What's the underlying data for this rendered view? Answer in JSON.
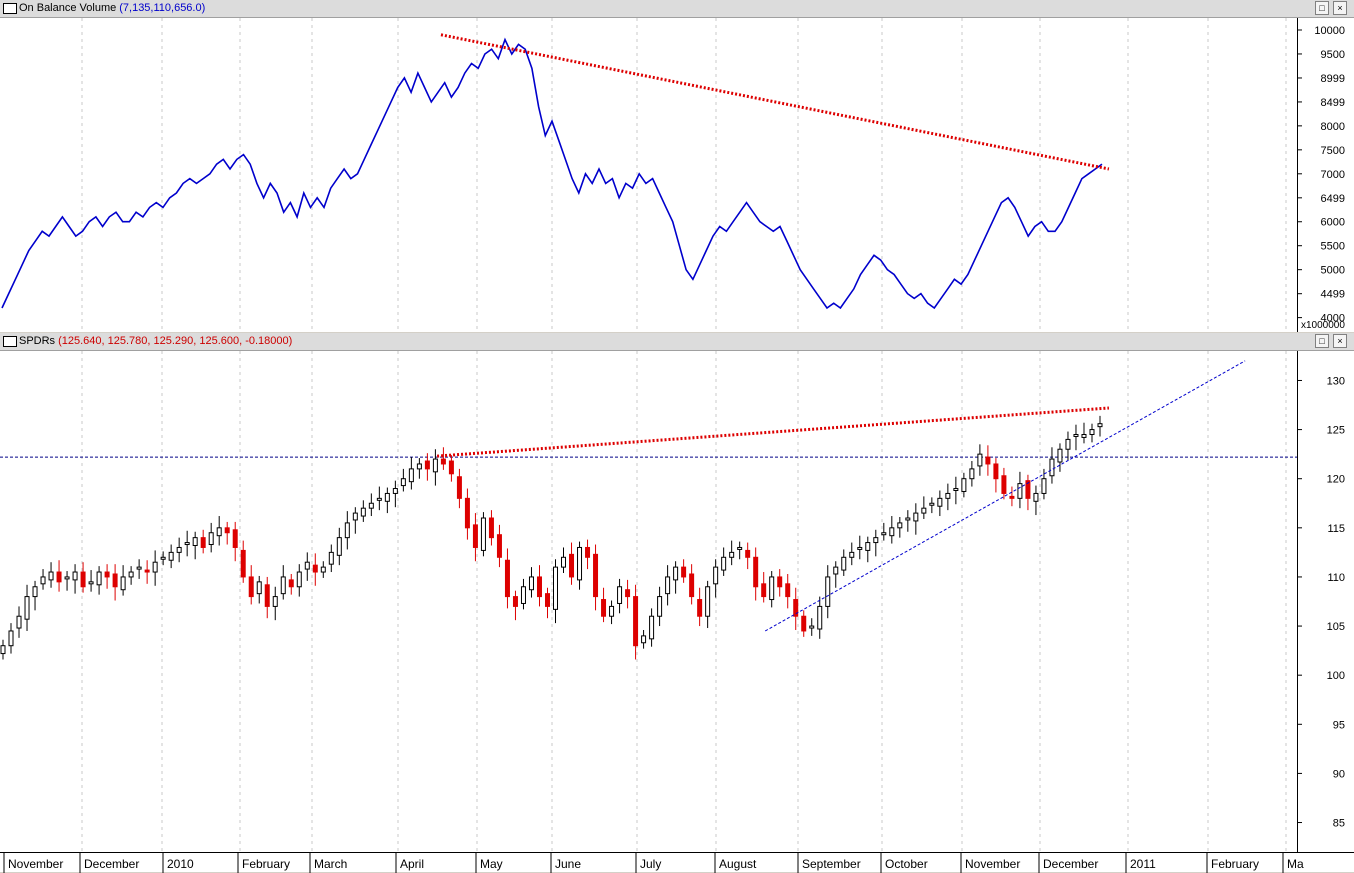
{
  "top_pane": {
    "title": "On Balance Volume",
    "values_text": "(7,135,110,656.0)",
    "title_color": "#0000cc",
    "multiplier": "x1000000"
  },
  "bottom_pane": {
    "title": "SPDRs",
    "values_text": "(125.640, 125.780, 125.290, 125.600, -0.18000)",
    "title_color": "#cc0000"
  },
  "window_buttons": {
    "restore": "□",
    "close": "×"
  },
  "x_axis_labels": [
    "November",
    "December",
    "2010",
    "February",
    "March",
    "April",
    "May",
    "June",
    "July",
    "August",
    "September",
    "October",
    "November",
    "December",
    "2011",
    "February",
    "Ma"
  ],
  "chart_data": [
    {
      "type": "line",
      "series": [
        {
          "name": "On Balance Volume",
          "color": "#0000cc",
          "values": [
            4200,
            4500,
            4800,
            5100,
            5400,
            5600,
            5800,
            5700,
            5900,
            6100,
            5900,
            5700,
            5800,
            6000,
            6100,
            5900,
            6100,
            6200,
            6000,
            6000,
            6200,
            6100,
            6300,
            6400,
            6300,
            6500,
            6600,
            6800,
            6900,
            6800,
            6900,
            7000,
            7200,
            7300,
            7100,
            7300,
            7400,
            7200,
            6800,
            6500,
            6800,
            6600,
            6200,
            6400,
            6100,
            6600,
            6300,
            6500,
            6300,
            6700,
            6900,
            7100,
            6900,
            7000,
            7300,
            7600,
            7900,
            8200,
            8500,
            8800,
            9000,
            8700,
            9100,
            8800,
            8500,
            8700,
            8900,
            8600,
            8800,
            9100,
            9300,
            9200,
            9500,
            9600,
            9400,
            9800,
            9500,
            9700,
            9600,
            9200,
            8400,
            7800,
            8100,
            7700,
            7300,
            6900,
            6600,
            7000,
            6800,
            7100,
            6800,
            6900,
            6500,
            6800,
            6700,
            7000,
            6800,
            6900,
            6600,
            6300,
            6000,
            5500,
            5000,
            4800,
            5100,
            5400,
            5700,
            5900,
            5800,
            6000,
            6200,
            6400,
            6200,
            6000,
            5900,
            5800,
            5900,
            5600,
            5300,
            5000,
            4800,
            4600,
            4400,
            4200,
            4300,
            4200,
            4400,
            4600,
            4900,
            5100,
            5300,
            5200,
            5000,
            4900,
            4700,
            4500,
            4400,
            4500,
            4300,
            4200,
            4400,
            4600,
            4800,
            4700,
            4900,
            5200,
            5500,
            5800,
            6100,
            6400,
            6500,
            6300,
            6000,
            5700,
            5900,
            6000,
            5800,
            5800,
            6000,
            6300,
            6600,
            6900,
            7000,
            7100,
            7200
          ]
        }
      ],
      "trendline": {
        "x": [
          0.34,
          0.855
        ],
        "y": [
          9900,
          7100
        ],
        "color": "#dd0000"
      },
      "ylim": [
        3700,
        10250
      ],
      "yticks": [
        10000,
        9500,
        8999,
        8499,
        8000,
        7500,
        7000,
        6499,
        6000,
        5500,
        5000,
        4499,
        4000
      ]
    },
    {
      "type": "candlestick",
      "series": [
        {
          "name": "SPDRs",
          "up_color": "#000000",
          "down_color": "#dd0000",
          "close": [
            103,
            104.5,
            106,
            108,
            109,
            110,
            110.5,
            109.5,
            110,
            110.5,
            109,
            109.5,
            110.5,
            110,
            109,
            110,
            110.5,
            111,
            110.5,
            111.5,
            112,
            112.5,
            113,
            113.5,
            114,
            113,
            114.5,
            115,
            114.5,
            113,
            110,
            108,
            109.5,
            107,
            108,
            110,
            109,
            110.5,
            111.5,
            110.5,
            111,
            112.5,
            114,
            115.5,
            116.5,
            117,
            117.5,
            118,
            118.5,
            119,
            120,
            121,
            121.5,
            121,
            122,
            121.5,
            120.5,
            118,
            115,
            113,
            116,
            114,
            112,
            108,
            107,
            109,
            110,
            108,
            107,
            111,
            112,
            110,
            113,
            112,
            108,
            106,
            107,
            109,
            108,
            103,
            104,
            106,
            108,
            110,
            111,
            110,
            108,
            106,
            109,
            111,
            112,
            112.5,
            113,
            112,
            109,
            108,
            110,
            109,
            108,
            106,
            104.5,
            105,
            107,
            110,
            111,
            112,
            112.5,
            113,
            113.5,
            114,
            114.5,
            115,
            115.5,
            116,
            116.5,
            117,
            117.5,
            118,
            118.5,
            119,
            120,
            121,
            122.5,
            121.5,
            120,
            118.5,
            118,
            119.5,
            118,
            118.5,
            120,
            122,
            123,
            124,
            124.5,
            124.5,
            125,
            125.6
          ],
          "ohlc_note": "Daily OHLC candles, Nov 2009 to Dec 2010"
        }
      ],
      "trendline_upper": {
        "x": [
          0.337,
          0.855
        ],
        "y": [
          122.3,
          127.2
        ],
        "color": "#dd0000"
      },
      "trendline_lower": {
        "x": [
          0.59,
          0.96
        ],
        "y": [
          104.5,
          132
        ],
        "color": "#0000cc"
      },
      "horizontal_line": {
        "y": 122.2,
        "color": "#000088"
      },
      "ylim": [
        82,
        133
      ],
      "yticks": [
        130,
        125,
        120,
        115,
        110,
        105,
        100,
        95,
        90,
        85
      ]
    }
  ]
}
